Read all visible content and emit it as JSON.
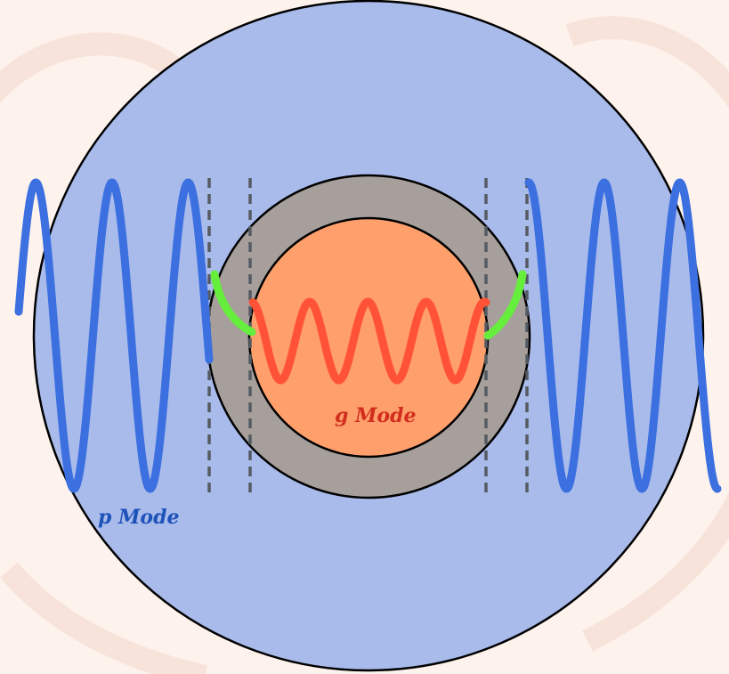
{
  "labels": {
    "p_mode": "p Mode",
    "g_mode": "g Mode"
  },
  "colors": {
    "background": "#fdf2ec",
    "outer_envelope": "#a8bbeb",
    "shell": "#a69f9b",
    "core": "#ff9f6c",
    "p_wave": "#3c6fe0",
    "g_wave": "#ff5236",
    "coupling": "#66ee3c",
    "boundary_lines": "#555b63",
    "p_label": "#1f52b8",
    "g_label": "#d22d1d"
  }
}
